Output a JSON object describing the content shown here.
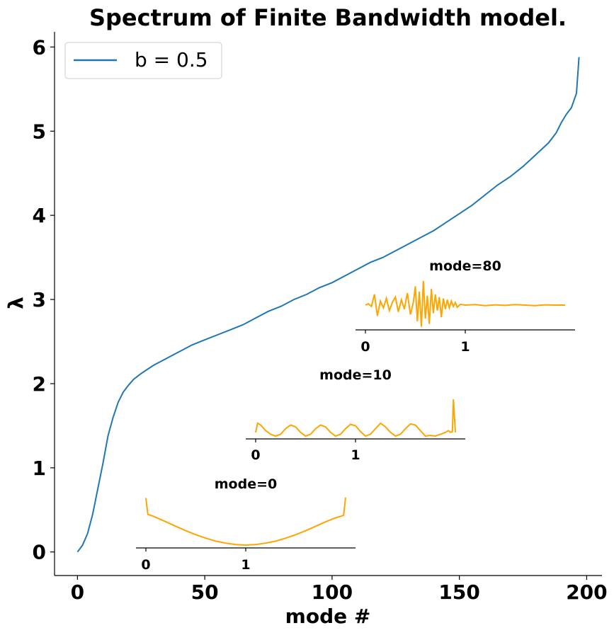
{
  "chart_data": {
    "type": "line",
    "title": "Spectrum of Finite Bandwidth model.",
    "xlabel": "mode #",
    "ylabel": "λ",
    "xlim": [
      -9,
      206
    ],
    "ylim": [
      -0.28,
      6.18
    ],
    "xticks": [
      0,
      50,
      100,
      150,
      200
    ],
    "yticks": [
      0,
      1,
      2,
      3,
      4,
      5,
      6
    ],
    "grid": false,
    "legend_position": "top-left",
    "series": [
      {
        "name": "b = 0.5",
        "color": "#1f77b4",
        "x": [
          0,
          2,
          4,
          6,
          8,
          10,
          12,
          14,
          16,
          18,
          20,
          22,
          25,
          28,
          30,
          35,
          40,
          45,
          50,
          55,
          60,
          65,
          70,
          75,
          80,
          85,
          90,
          95,
          100,
          105,
          110,
          115,
          120,
          125,
          130,
          135,
          140,
          145,
          150,
          155,
          160,
          165,
          170,
          175,
          180,
          185,
          188,
          190,
          192,
          194,
          196,
          197
        ],
        "values": [
          0.0,
          0.08,
          0.22,
          0.45,
          0.75,
          1.05,
          1.38,
          1.6,
          1.78,
          1.9,
          1.98,
          2.05,
          2.12,
          2.18,
          2.22,
          2.3,
          2.38,
          2.46,
          2.52,
          2.58,
          2.64,
          2.7,
          2.78,
          2.86,
          2.92,
          3.0,
          3.06,
          3.14,
          3.2,
          3.28,
          3.36,
          3.44,
          3.5,
          3.58,
          3.66,
          3.74,
          3.82,
          3.92,
          4.02,
          4.12,
          4.24,
          4.36,
          4.46,
          4.58,
          4.72,
          4.86,
          4.98,
          5.1,
          5.2,
          5.28,
          5.45,
          5.88
        ]
      }
    ],
    "insets": [
      {
        "title": "mode=0",
        "color": "#ffa500",
        "xticks": [
          0,
          1
        ],
        "x": [
          0,
          0.02,
          0.05,
          0.1,
          0.2,
          0.3,
          0.4,
          0.5,
          0.6,
          0.7,
          0.8,
          0.9,
          1.0,
          1.1,
          1.2,
          1.3,
          1.4,
          1.5,
          1.6,
          1.7,
          1.8,
          1.9,
          1.95,
          1.98,
          2.0
        ],
        "values": [
          0.95,
          0.62,
          0.6,
          0.56,
          0.47,
          0.38,
          0.29,
          0.21,
          0.14,
          0.08,
          0.04,
          0.01,
          0.0,
          0.01,
          0.04,
          0.08,
          0.14,
          0.21,
          0.29,
          0.38,
          0.47,
          0.55,
          0.58,
          0.6,
          0.96
        ]
      },
      {
        "title": "mode=10",
        "color": "#ffa500",
        "xticks": [
          0,
          1
        ],
        "x": [
          0,
          0.02,
          0.05,
          0.1,
          0.15,
          0.2,
          0.25,
          0.3,
          0.35,
          0.4,
          0.45,
          0.5,
          0.55,
          0.6,
          0.65,
          0.7,
          0.75,
          0.8,
          0.85,
          0.9,
          0.95,
          1.0,
          1.05,
          1.1,
          1.15,
          1.2,
          1.25,
          1.3,
          1.35,
          1.4,
          1.45,
          1.5,
          1.55,
          1.6,
          1.65,
          1.7,
          1.75,
          1.8,
          1.85,
          1.9,
          1.93,
          1.95,
          1.97,
          1.98,
          2.0
        ],
        "values": [
          0.1,
          0.35,
          0.3,
          0.15,
          0.05,
          0.0,
          0.05,
          0.2,
          0.3,
          0.25,
          0.1,
          0.0,
          0.05,
          0.2,
          0.3,
          0.25,
          0.1,
          0.0,
          0.05,
          0.2,
          0.32,
          0.28,
          0.12,
          0.0,
          0.05,
          0.2,
          0.35,
          0.25,
          0.1,
          0.0,
          0.05,
          0.2,
          0.33,
          0.3,
          0.15,
          0.0,
          0.02,
          0.0,
          0.05,
          0.1,
          0.15,
          0.1,
          0.12,
          1.0,
          0.1
        ]
      },
      {
        "title": "mode=80",
        "color": "#ffa500",
        "xticks": [
          0,
          1
        ],
        "x": [
          0,
          0.03,
          0.06,
          0.09,
          0.12,
          0.15,
          0.18,
          0.21,
          0.24,
          0.27,
          0.3,
          0.33,
          0.36,
          0.39,
          0.42,
          0.45,
          0.48,
          0.5,
          0.52,
          0.54,
          0.56,
          0.58,
          0.6,
          0.62,
          0.64,
          0.66,
          0.68,
          0.7,
          0.72,
          0.74,
          0.76,
          0.78,
          0.8,
          0.82,
          0.84,
          0.86,
          0.88,
          0.9,
          0.92,
          0.95,
          1.0,
          1.1,
          1.2,
          1.3,
          1.4,
          1.5,
          1.6,
          1.7,
          1.8,
          1.9,
          2.0
        ],
        "values": [
          0.0,
          0.05,
          -0.05,
          0.4,
          -0.4,
          0.15,
          -0.1,
          0.25,
          -0.2,
          0.1,
          0.3,
          -0.25,
          0.2,
          -0.15,
          0.45,
          -0.35,
          0.1,
          0.7,
          -0.6,
          0.5,
          -0.8,
          0.9,
          -0.5,
          0.35,
          -0.7,
          0.6,
          -0.3,
          0.4,
          -0.2,
          0.3,
          -0.45,
          0.25,
          -0.15,
          0.2,
          -0.1,
          0.15,
          -0.05,
          0.1,
          -0.08,
          0.03,
          0.0,
          0.02,
          -0.02,
          0.01,
          -0.01,
          0.02,
          0.0,
          -0.02,
          0.01,
          0.0,
          0.0
        ]
      }
    ]
  }
}
